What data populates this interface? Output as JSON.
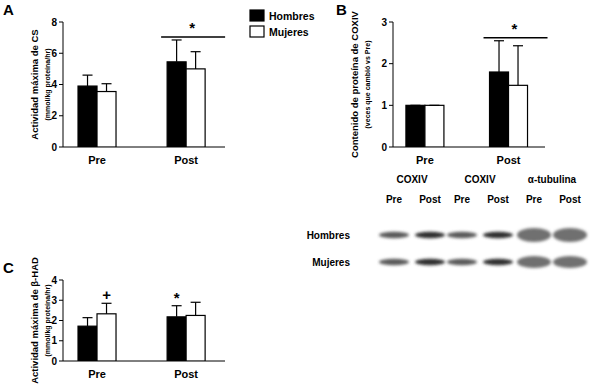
{
  "chart_data": [
    {
      "type": "bar",
      "title": "A",
      "ylabel": [
        "Actividad máxima de CS",
        "(mmol/kg proteína/hr)"
      ],
      "categories": [
        "Pre",
        "Post"
      ],
      "series": [
        {
          "name": "Hombres",
          "color": "#000000",
          "values": [
            3.9,
            5.45
          ],
          "errors": [
            0.7,
            1.4
          ]
        },
        {
          "name": "Mujeres",
          "color": "#ffffff",
          "values": [
            3.55,
            5.0
          ],
          "errors": [
            0.5,
            1.1
          ]
        }
      ],
      "ylim": [
        0,
        8
      ],
      "yticks": [
        0,
        2,
        4,
        6,
        8
      ],
      "legend": "right",
      "annotations": [
        {
          "text": "*",
          "category": "Post"
        }
      ]
    },
    {
      "type": "bar",
      "title": "B",
      "ylabel": [
        "Contenido de proteína de COXIV",
        "(veces que cambió vs Pre)"
      ],
      "categories": [
        "Pre",
        "Post"
      ],
      "series": [
        {
          "color": "#000000",
          "values": [
            1,
            1.8
          ],
          "errors": [
            0,
            0.75
          ]
        },
        {
          "color": "#ffffff",
          "values": [
            1,
            1.48
          ],
          "errors": [
            0,
            0.95
          ]
        }
      ],
      "ylim": [
        0,
        3
      ],
      "yticks": [
        0,
        1,
        2,
        3
      ],
      "annotations": [
        {
          "text": "*",
          "category": "Post"
        }
      ]
    },
    {
      "type": "bar",
      "title": "C",
      "ylabel": [
        "Actividad máxima de β-HAD",
        "(mmol/kg proteína/hr)"
      ],
      "categories": [
        "Pre",
        "Post"
      ],
      "series": [
        {
          "color": "#000000",
          "values": [
            1.72,
            2.18
          ],
          "errors": [
            0.42,
            0.55
          ]
        },
        {
          "color": "#ffffff",
          "values": [
            2.33,
            2.25
          ],
          "errors": [
            0.52,
            0.65
          ]
        }
      ],
      "ylim": [
        0,
        4
      ],
      "yticks": [
        0,
        1,
        2,
        3,
        4
      ],
      "annotations": [
        {
          "text": "+",
          "category": "Pre",
          "series": 1
        },
        {
          "text": "*",
          "category": "Post",
          "series": 0
        }
      ]
    }
  ],
  "blot": {
    "columns": [
      {
        "label": "COXIV",
        "lanes": [
          "Pre",
          "Post"
        ]
      },
      {
        "label": "COXIV",
        "lanes": [
          "Pre",
          "Post"
        ]
      },
      {
        "label": "α-tubulina",
        "lanes": [
          "Pre",
          "Post"
        ]
      }
    ],
    "rows": [
      "Hombres",
      "Mujeres"
    ]
  }
}
